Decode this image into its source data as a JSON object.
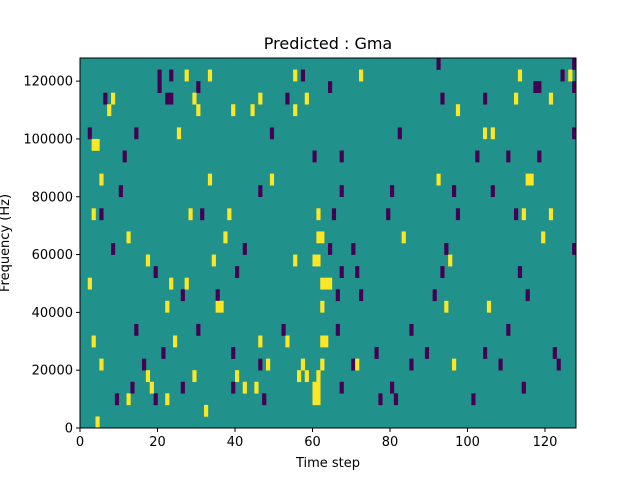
{
  "chart_data": {
    "type": "heatmap",
    "title": "Predicted : Gma",
    "xlabel": "Time step",
    "ylabel": "Frequency (Hz)",
    "xlim": [
      0,
      128
    ],
    "ylim": [
      0,
      128000
    ],
    "xticks": [
      0,
      20,
      40,
      60,
      80,
      100,
      120
    ],
    "yticks": [
      0,
      20000,
      40000,
      60000,
      80000,
      100000,
      120000
    ],
    "xtick_labels": [
      "0",
      "20",
      "40",
      "60",
      "80",
      "100",
      "120"
    ],
    "ytick_labels": [
      "0",
      "20000",
      "40000",
      "60000",
      "80000",
      "100000",
      "120000"
    ],
    "colormap": "viridis",
    "background_color": "#21918c",
    "low_color": "#440154",
    "high_color": "#fde725",
    "yellow_cells": [
      [
        4,
        0,
        4000
      ],
      [
        32,
        4000,
        8000
      ],
      [
        12,
        8000,
        12000
      ],
      [
        22,
        8000,
        12000
      ],
      [
        60,
        8000,
        12000
      ],
      [
        61,
        8000,
        12000
      ],
      [
        18,
        12000,
        16000
      ],
      [
        42,
        12000,
        16000
      ],
      [
        45,
        12000,
        16000
      ],
      [
        60,
        12000,
        16000
      ],
      [
        61,
        12000,
        16000
      ],
      [
        17,
        16000,
        20000
      ],
      [
        29,
        16000,
        20000
      ],
      [
        40,
        16000,
        20000
      ],
      [
        56,
        16000,
        20000
      ],
      [
        58,
        16000,
        20000
      ],
      [
        61,
        16000,
        20000
      ],
      [
        5,
        20000,
        24000
      ],
      [
        48,
        20000,
        24000
      ],
      [
        57,
        20000,
        24000
      ],
      [
        62,
        20000,
        24000
      ],
      [
        71,
        20000,
        24000
      ],
      [
        96,
        20000,
        24000
      ],
      [
        3,
        28000,
        32000
      ],
      [
        24,
        28000,
        32000
      ],
      [
        46,
        28000,
        32000
      ],
      [
        53,
        28000,
        32000
      ],
      [
        62,
        28000,
        32000
      ],
      [
        63,
        28000,
        32000
      ],
      [
        22,
        40000,
        44000
      ],
      [
        35,
        40000,
        44000
      ],
      [
        36,
        40000,
        44000
      ],
      [
        62,
        40000,
        44000
      ],
      [
        94,
        40000,
        44000
      ],
      [
        105,
        40000,
        44000
      ],
      [
        2,
        48000,
        52000
      ],
      [
        23,
        48000,
        52000
      ],
      [
        27,
        48000,
        52000
      ],
      [
        62,
        48000,
        52000
      ],
      [
        63,
        48000,
        52000
      ],
      [
        64,
        48000,
        52000
      ],
      [
        17,
        56000,
        60000
      ],
      [
        34,
        56000,
        60000
      ],
      [
        55,
        56000,
        60000
      ],
      [
        60,
        56000,
        60000
      ],
      [
        61,
        56000,
        60000
      ],
      [
        95,
        56000,
        60000
      ],
      [
        12,
        64000,
        68000
      ],
      [
        37,
        64000,
        68000
      ],
      [
        61,
        64000,
        68000
      ],
      [
        62,
        64000,
        68000
      ],
      [
        83,
        64000,
        68000
      ],
      [
        119,
        64000,
        68000
      ],
      [
        3,
        72000,
        76000
      ],
      [
        28,
        72000,
        76000
      ],
      [
        38,
        72000,
        76000
      ],
      [
        61,
        72000,
        76000
      ],
      [
        114,
        72000,
        76000
      ],
      [
        121,
        72000,
        76000
      ],
      [
        5,
        84000,
        88000
      ],
      [
        33,
        84000,
        88000
      ],
      [
        49,
        84000,
        88000
      ],
      [
        92,
        84000,
        88000
      ],
      [
        115,
        84000,
        88000
      ],
      [
        116,
        84000,
        88000
      ],
      [
        3,
        96000,
        100000
      ],
      [
        4,
        96000,
        100000
      ],
      [
        25,
        100000,
        104000
      ],
      [
        104,
        100000,
        104000
      ],
      [
        106,
        100000,
        104000
      ],
      [
        7,
        108000,
        112000
      ],
      [
        30,
        108000,
        112000
      ],
      [
        39,
        108000,
        112000
      ],
      [
        44,
        108000,
        112000
      ],
      [
        55,
        108000,
        112000
      ],
      [
        97,
        108000,
        112000
      ],
      [
        8,
        112000,
        116000
      ],
      [
        29,
        112000,
        116000
      ],
      [
        46,
        112000,
        116000
      ],
      [
        58,
        112000,
        116000
      ],
      [
        112,
        112000,
        116000
      ],
      [
        121,
        112000,
        116000
      ],
      [
        27,
        120000,
        124000
      ],
      [
        33,
        120000,
        124000
      ],
      [
        55,
        120000,
        124000
      ],
      [
        72,
        120000,
        124000
      ],
      [
        113,
        120000,
        124000
      ],
      [
        126,
        120000,
        124000
      ]
    ],
    "purple_cells": [
      [
        9,
        8000,
        12000
      ],
      [
        19,
        8000,
        12000
      ],
      [
        47,
        8000,
        12000
      ],
      [
        77,
        8000,
        12000
      ],
      [
        81,
        8000,
        12000
      ],
      [
        101,
        8000,
        12000
      ],
      [
        13,
        12000,
        16000
      ],
      [
        26,
        12000,
        16000
      ],
      [
        39,
        12000,
        16000
      ],
      [
        67,
        12000,
        16000
      ],
      [
        80,
        12000,
        16000
      ],
      [
        114,
        12000,
        16000
      ],
      [
        16,
        20000,
        24000
      ],
      [
        46,
        20000,
        24000
      ],
      [
        70,
        20000,
        24000
      ],
      [
        85,
        20000,
        24000
      ],
      [
        108,
        20000,
        24000
      ],
      [
        123,
        20000,
        24000
      ],
      [
        21,
        24000,
        28000
      ],
      [
        39,
        24000,
        28000
      ],
      [
        76,
        24000,
        28000
      ],
      [
        89,
        24000,
        28000
      ],
      [
        104,
        24000,
        28000
      ],
      [
        122,
        24000,
        28000
      ],
      [
        14,
        32000,
        36000
      ],
      [
        30,
        32000,
        36000
      ],
      [
        52,
        32000,
        36000
      ],
      [
        66,
        32000,
        36000
      ],
      [
        85,
        32000,
        36000
      ],
      [
        110,
        32000,
        36000
      ],
      [
        26,
        44000,
        48000
      ],
      [
        35,
        44000,
        48000
      ],
      [
        66,
        44000,
        48000
      ],
      [
        72,
        44000,
        48000
      ],
      [
        91,
        44000,
        48000
      ],
      [
        115,
        44000,
        48000
      ],
      [
        19,
        52000,
        56000
      ],
      [
        40,
        52000,
        56000
      ],
      [
        67,
        52000,
        56000
      ],
      [
        71,
        52000,
        56000
      ],
      [
        93,
        52000,
        56000
      ],
      [
        113,
        52000,
        56000
      ],
      [
        8,
        60000,
        64000
      ],
      [
        42,
        60000,
        64000
      ],
      [
        64,
        60000,
        64000
      ],
      [
        70,
        60000,
        64000
      ],
      [
        94,
        60000,
        64000
      ],
      [
        127,
        60000,
        64000
      ],
      [
        5,
        72000,
        76000
      ],
      [
        31,
        72000,
        76000
      ],
      [
        65,
        72000,
        76000
      ],
      [
        79,
        72000,
        76000
      ],
      [
        97,
        72000,
        76000
      ],
      [
        112,
        72000,
        76000
      ],
      [
        10,
        80000,
        84000
      ],
      [
        46,
        80000,
        84000
      ],
      [
        67,
        80000,
        84000
      ],
      [
        80,
        80000,
        84000
      ],
      [
        96,
        80000,
        84000
      ],
      [
        106,
        80000,
        84000
      ],
      [
        11,
        92000,
        96000
      ],
      [
        60,
        92000,
        96000
      ],
      [
        67,
        92000,
        96000
      ],
      [
        102,
        92000,
        96000
      ],
      [
        110,
        92000,
        96000
      ],
      [
        118,
        92000,
        96000
      ],
      [
        2,
        100000,
        104000
      ],
      [
        14,
        100000,
        104000
      ],
      [
        49,
        100000,
        104000
      ],
      [
        82,
        100000,
        104000
      ],
      [
        104,
        100000,
        104000
      ],
      [
        127,
        100000,
        104000
      ],
      [
        6,
        112000,
        116000
      ],
      [
        22,
        112000,
        116000
      ],
      [
        23,
        112000,
        116000
      ],
      [
        53,
        112000,
        116000
      ],
      [
        93,
        112000,
        116000
      ],
      [
        104,
        112000,
        116000
      ],
      [
        20,
        116000,
        120000
      ],
      [
        30,
        116000,
        120000
      ],
      [
        64,
        116000,
        120000
      ],
      [
        117,
        116000,
        120000
      ],
      [
        118,
        116000,
        120000
      ],
      [
        127,
        116000,
        120000
      ],
      [
        20,
        120000,
        124000
      ],
      [
        23,
        120000,
        124000
      ],
      [
        57,
        120000,
        124000
      ],
      [
        92,
        124000,
        128000
      ],
      [
        124,
        120000,
        124000
      ],
      [
        127,
        124000,
        128000
      ]
    ]
  }
}
